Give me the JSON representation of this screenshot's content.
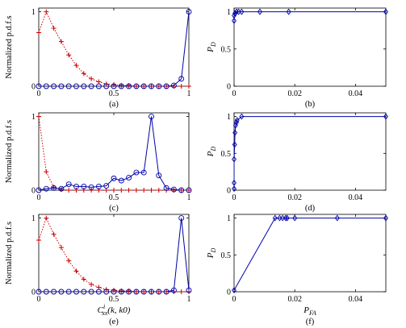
{
  "chart_data": [
    {
      "panel": "a",
      "type": "line",
      "caption": "(a)",
      "ylabel": "Normalized p.d.f.s",
      "xlabel": "",
      "xlim": [
        0,
        1
      ],
      "ylim": [
        0,
        1.05
      ],
      "xticks": [
        0,
        0.5,
        1
      ],
      "yticks": [
        0,
        1
      ],
      "xtick_labels": [
        "0",
        "0.5",
        "1"
      ],
      "ytick_labels": [
        "0",
        "1"
      ],
      "series": [
        {
          "marker": "plus",
          "linestyle": "dotted",
          "color": "#cc0000",
          "x": [
            0,
            0.05,
            0.1,
            0.15,
            0.2,
            0.25,
            0.3,
            0.35,
            0.4,
            0.45,
            0.5,
            0.55,
            0.6,
            0.65,
            0.7,
            0.75,
            0.8,
            0.85,
            0.9,
            0.95,
            1.0
          ],
          "y": [
            0.72,
            1.0,
            0.78,
            0.6,
            0.42,
            0.28,
            0.17,
            0.1,
            0.06,
            0.03,
            0.02,
            0.01,
            0.01,
            0.0,
            0.0,
            0.0,
            0.0,
            0.0,
            0.0,
            0.0,
            0.0
          ]
        },
        {
          "marker": "circle",
          "linestyle": "solid",
          "color": "#0000aa",
          "x": [
            0,
            0.05,
            0.1,
            0.15,
            0.2,
            0.25,
            0.3,
            0.35,
            0.4,
            0.45,
            0.5,
            0.55,
            0.6,
            0.65,
            0.7,
            0.75,
            0.8,
            0.85,
            0.9,
            0.95,
            1.0
          ],
          "y": [
            0,
            0,
            0,
            0,
            0,
            0,
            0,
            0,
            0,
            0,
            0,
            0,
            0,
            0,
            0,
            0,
            0,
            0,
            0.01,
            0.1,
            1.0
          ]
        }
      ]
    },
    {
      "panel": "b",
      "type": "line",
      "caption": "(b)",
      "ylabel": "P_D",
      "xlabel": "",
      "xlim": [
        0,
        0.05
      ],
      "ylim": [
        0,
        1.05
      ],
      "xticks": [
        0,
        0.02,
        0.04
      ],
      "yticks": [
        0,
        0.5,
        1
      ],
      "xtick_labels": [
        "0",
        "0.02",
        "0.04"
      ],
      "ytick_labels": [
        "0",
        "0.5",
        "1"
      ],
      "series": [
        {
          "marker": "diamond",
          "linestyle": "solid",
          "color": "#0000aa",
          "x": [
            0,
            0,
            0.0003,
            0.0008,
            0.0015,
            0.0025,
            0.0085,
            0.018,
            0.05
          ],
          "y": [
            0.88,
            0.95,
            0.98,
            1.0,
            1.0,
            1.0,
            1.0,
            1.0,
            1.0
          ]
        }
      ]
    },
    {
      "panel": "c",
      "type": "line",
      "caption": "(c)",
      "ylabel": "Normalized p.d.f.s",
      "xlabel": "",
      "xlim": [
        0,
        1
      ],
      "ylim": [
        0,
        1.05
      ],
      "xticks": [
        0,
        0.5,
        1
      ],
      "yticks": [
        0,
        1
      ],
      "xtick_labels": [
        "0",
        "0.5",
        "1"
      ],
      "ytick_labels": [
        "0",
        "1"
      ],
      "series": [
        {
          "marker": "plus",
          "linestyle": "dotted",
          "color": "#cc0000",
          "x": [
            0,
            0.05,
            0.1,
            0.15,
            0.2,
            0.25,
            0.3,
            0.35,
            0.4,
            0.45,
            0.5,
            0.55,
            0.6,
            0.65,
            0.7,
            0.75,
            0.8,
            0.85,
            0.9,
            0.95,
            1.0
          ],
          "y": [
            1.0,
            0.25,
            0.04,
            0.01,
            0.0,
            0.0,
            0.0,
            0.0,
            0.0,
            0.0,
            0.0,
            0.0,
            0.0,
            0.0,
            0.0,
            0.0,
            0.0,
            0.0,
            0.0,
            0.0,
            0.0
          ]
        },
        {
          "marker": "circle",
          "linestyle": "solid",
          "color": "#0000aa",
          "x": [
            0,
            0.05,
            0.1,
            0.15,
            0.2,
            0.25,
            0.3,
            0.35,
            0.4,
            0.45,
            0.5,
            0.55,
            0.6,
            0.65,
            0.7,
            0.75,
            0.8,
            0.85,
            0.9,
            0.95,
            1.0
          ],
          "y": [
            0,
            0.02,
            0.03,
            0.02,
            0.08,
            0.05,
            0.05,
            0.04,
            0.05,
            0.06,
            0.16,
            0.13,
            0.17,
            0.24,
            0.24,
            1.0,
            0.2,
            0.03,
            0.01,
            0.0,
            0.0
          ]
        }
      ]
    },
    {
      "panel": "d",
      "type": "line",
      "caption": "(d)",
      "ylabel": "P_D",
      "xlabel": "",
      "xlim": [
        0,
        0.05
      ],
      "ylim": [
        0,
        1.05
      ],
      "xticks": [
        0,
        0.02,
        0.04
      ],
      "yticks": [
        0,
        0.5,
        1
      ],
      "xtick_labels": [
        "0",
        "0.02",
        "0.04"
      ],
      "ytick_labels": [
        "0",
        "0.5",
        "1"
      ],
      "series": [
        {
          "marker": "diamond",
          "linestyle": "solid",
          "color": "#0000aa",
          "x": [
            0,
            0,
            0,
            0.0002,
            0.0003,
            0.0005,
            0.0008,
            0.001,
            0.0025,
            0.05
          ],
          "y": [
            0.02,
            0.1,
            0.42,
            0.62,
            0.78,
            0.88,
            0.92,
            0.95,
            1.0,
            1.0
          ]
        }
      ]
    },
    {
      "panel": "e",
      "type": "line",
      "caption": "(e)",
      "ylabel": "Normalized p.d.f.s",
      "xlabel": "C_xx^i(k, k_0)",
      "xlim": [
        0,
        1
      ],
      "ylim": [
        0,
        1.05
      ],
      "xticks": [
        0,
        0.5,
        1
      ],
      "yticks": [
        0,
        1
      ],
      "xtick_labels": [
        "0",
        "0.5",
        "1"
      ],
      "ytick_labels": [
        "0",
        "1"
      ],
      "series": [
        {
          "marker": "plus",
          "linestyle": "dotted",
          "color": "#cc0000",
          "x": [
            0,
            0.05,
            0.1,
            0.15,
            0.2,
            0.25,
            0.3,
            0.35,
            0.4,
            0.45,
            0.5,
            0.55,
            0.6,
            0.65,
            0.7,
            0.75,
            0.8,
            0.85,
            0.9,
            0.95,
            1.0
          ],
          "y": [
            0.7,
            1.0,
            0.78,
            0.6,
            0.42,
            0.28,
            0.17,
            0.1,
            0.06,
            0.03,
            0.02,
            0.01,
            0.01,
            0.0,
            0.0,
            0.0,
            0.0,
            0.0,
            0.0,
            0.0,
            0.0
          ]
        },
        {
          "marker": "circle",
          "linestyle": "solid",
          "color": "#0000aa",
          "x": [
            0,
            0.05,
            0.1,
            0.15,
            0.2,
            0.25,
            0.3,
            0.35,
            0.4,
            0.45,
            0.5,
            0.55,
            0.6,
            0.65,
            0.7,
            0.75,
            0.8,
            0.85,
            0.9,
            0.95,
            1.0
          ],
          "y": [
            0,
            0,
            0,
            0,
            0,
            0,
            0,
            0,
            0,
            0,
            0,
            0,
            0,
            0,
            0,
            0,
            0,
            0,
            0.02,
            1.0,
            0.02
          ]
        }
      ]
    },
    {
      "panel": "f",
      "type": "line",
      "caption": "(f)",
      "ylabel": "P_D",
      "xlabel": "P_FA",
      "xlim": [
        0,
        0.05
      ],
      "ylim": [
        0,
        1.05
      ],
      "xticks": [
        0,
        0.02,
        0.04
      ],
      "yticks": [
        0,
        0.5,
        1
      ],
      "xtick_labels": [
        "0",
        "0.02",
        "0.04"
      ],
      "ytick_labels": [
        "0",
        "0.5",
        "1"
      ],
      "series": [
        {
          "marker": "diamond",
          "linestyle": "solid",
          "color": "#0000aa",
          "x": [
            0,
            0.0135,
            0.015,
            0.016,
            0.017,
            0.0175,
            0.02,
            0.034,
            0.05
          ],
          "y": [
            0.02,
            1.0,
            1.0,
            1.0,
            1.0,
            1.0,
            1.0,
            1.0,
            1.0
          ]
        }
      ]
    }
  ]
}
